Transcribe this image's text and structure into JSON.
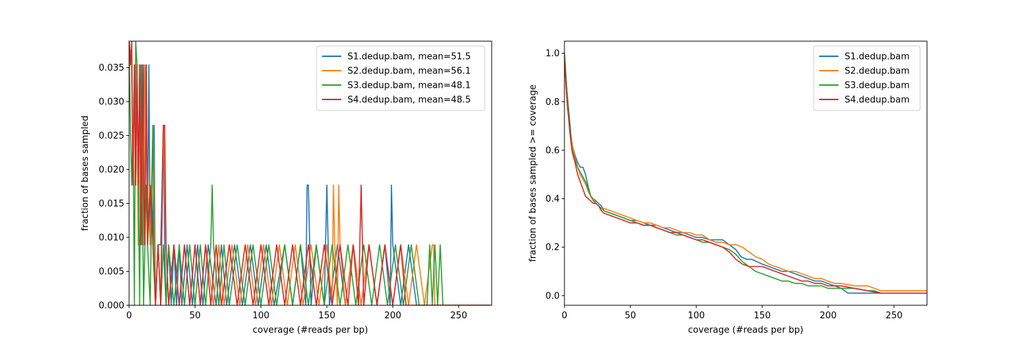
{
  "chart_data": [
    {
      "type": "line",
      "xlabel": "coverage (#reads per bp)",
      "ylabel": "fraction of bases sampled",
      "xlim": [
        0,
        275
      ],
      "ylim": [
        0,
        0.0389
      ],
      "x_ticks": [
        "0",
        "50",
        "100",
        "150",
        "200",
        "250"
      ],
      "y_ticks": [
        "0.000",
        "0.005",
        "0.010",
        "0.015",
        "0.020",
        "0.025",
        "0.030",
        "0.035"
      ],
      "grid": false,
      "legend_position": "top-right",
      "series": [
        {
          "name": "S1.dedup.bam, mean=51.5",
          "color": "#1f77b4",
          "x": [
            0,
            2,
            3,
            4,
            5,
            6,
            7,
            8,
            9,
            10,
            11,
            12,
            13,
            14,
            15,
            16,
            17,
            18,
            19,
            20,
            22,
            24,
            26,
            27,
            28,
            30,
            32,
            34,
            36,
            38,
            40,
            44,
            48,
            52,
            56,
            60,
            66,
            70,
            74,
            80,
            86,
            92,
            98,
            104,
            110,
            118,
            124,
            130,
            134,
            135,
            136,
            137,
            138,
            142,
            148,
            150,
            151,
            152,
            158,
            164,
            170,
            176,
            182,
            188,
            194,
            198,
            199,
            200,
            206,
            212,
            218,
            274
          ],
          "y": [
            0.0389,
            0.0354,
            0.0177,
            0.0354,
            0.0177,
            0.0354,
            0.0089,
            0.0354,
            0.0177,
            0.0089,
            0.0354,
            0.0089,
            0.0354,
            0.0089,
            0.0354,
            0.0089,
            0.0177,
            0.0089,
            0.0265,
            0,
            0.0089,
            0.0089,
            0.0265,
            0.0089,
            0,
            0.0089,
            0,
            0.0089,
            0,
            0.0089,
            0,
            0.0089,
            0,
            0.0089,
            0,
            0.0089,
            0,
            0.0089,
            0,
            0.0089,
            0,
            0.0089,
            0,
            0.0089,
            0,
            0.0089,
            0,
            0.0089,
            0,
            0.0177,
            0.0177,
            0.0089,
            0,
            0.0089,
            0,
            0.0177,
            0.0089,
            0,
            0.0089,
            0,
            0.0089,
            0,
            0.0089,
            0,
            0.0089,
            0,
            0.0177,
            0.0089,
            0,
            0.0089,
            0,
            0
          ]
        },
        {
          "name": "S2.dedup.bam, mean=56.1",
          "color": "#ff7f0e",
          "x": [
            0,
            2,
            3,
            4,
            5,
            6,
            7,
            8,
            9,
            10,
            11,
            12,
            14,
            16,
            18,
            19,
            20,
            22,
            24,
            26,
            28,
            30,
            34,
            38,
            42,
            46,
            50,
            54,
            58,
            64,
            68,
            72,
            78,
            84,
            90,
            96,
            102,
            108,
            114,
            120,
            126,
            132,
            138,
            144,
            150,
            154,
            155,
            156,
            158,
            159,
            160,
            164,
            170,
            176,
            182,
            188,
            194,
            200,
            206,
            212,
            218,
            224,
            230,
            231,
            232,
            274
          ],
          "y": [
            0.0389,
            0.0354,
            0.0177,
            0.0354,
            0.0177,
            0.0354,
            0.0089,
            0.0354,
            0.0177,
            0.0354,
            0.0089,
            0.0354,
            0.0177,
            0.0089,
            0.0265,
            0.0177,
            0,
            0.0089,
            0,
            0.0265,
            0.0089,
            0,
            0.0089,
            0,
            0.0089,
            0,
            0.0089,
            0,
            0.0089,
            0,
            0.0089,
            0,
            0.0089,
            0,
            0.0089,
            0,
            0.0089,
            0,
            0.0089,
            0,
            0.0089,
            0,
            0.0089,
            0,
            0.0089,
            0,
            0.0177,
            0.0089,
            0,
            0.0177,
            0.0089,
            0,
            0.0089,
            0,
            0.0089,
            0,
            0.0089,
            0,
            0.0089,
            0,
            0.0089,
            0,
            0.0089,
            0.0089,
            0,
            0
          ]
        },
        {
          "name": "S3.dedup.bam, mean=48.1",
          "color": "#2ca02c",
          "x": [
            0,
            1,
            2,
            3,
            4,
            5,
            6,
            7,
            8,
            9,
            10,
            11,
            12,
            13,
            14,
            16,
            18,
            19,
            20,
            22,
            24,
            26,
            28,
            30,
            34,
            38,
            42,
            46,
            50,
            54,
            58,
            62,
            63,
            64,
            68,
            72,
            76,
            82,
            88,
            94,
            100,
            106,
            112,
            118,
            124,
            130,
            136,
            142,
            148,
            154,
            160,
            166,
            172,
            178,
            184,
            190,
            196,
            202,
            208,
            214,
            220,
            226,
            228,
            230,
            232,
            234,
            236,
            238,
            274
          ],
          "y": [
            0.0389,
            0.0265,
            0.0177,
            0.0265,
            0,
            0.0389,
            0.0354,
            0.0177,
            0,
            0.0354,
            0.0177,
            0,
            0.0089,
            0.0177,
            0.0089,
            0,
            0.0265,
            0.0089,
            0,
            0.0089,
            0,
            0.0089,
            0,
            0.0089,
            0,
            0.0089,
            0,
            0.0089,
            0,
            0.0089,
            0,
            0.0089,
            0.0177,
            0.0089,
            0,
            0.0089,
            0,
            0.0089,
            0,
            0.0089,
            0,
            0.0089,
            0,
            0.0089,
            0,
            0.0089,
            0,
            0.0089,
            0,
            0.0089,
            0,
            0.0089,
            0,
            0.0089,
            0,
            0.0089,
            0,
            0.0089,
            0,
            0.0089,
            0,
            0,
            0.0089,
            0,
            0.0089,
            0,
            0.0089,
            0,
            0
          ]
        },
        {
          "name": "S4.dedup.bam, mean=48.5",
          "color": "#d62728",
          "x": [
            0,
            1,
            2,
            3,
            4,
            5,
            6,
            7,
            8,
            9,
            10,
            11,
            12,
            13,
            14,
            16,
            18,
            20,
            22,
            24,
            26,
            27,
            28,
            30,
            34,
            38,
            42,
            46,
            50,
            54,
            58,
            62,
            66,
            70,
            76,
            82,
            88,
            94,
            100,
            106,
            112,
            118,
            124,
            130,
            136,
            142,
            148,
            154,
            160,
            166,
            170,
            174,
            176,
            178,
            182,
            188,
            194,
            200,
            206,
            210,
            274
          ],
          "y": [
            0.0389,
            0.0354,
            0.0389,
            0.0177,
            0.0354,
            0.0177,
            0.0354,
            0.0177,
            0.0354,
            0.0089,
            0.0354,
            0.0177,
            0.0089,
            0.0354,
            0.0089,
            0.0177,
            0.0089,
            0,
            0.0089,
            0,
            0.0265,
            0.0265,
            0.0089,
            0,
            0.0089,
            0,
            0.0089,
            0,
            0.0089,
            0,
            0.0089,
            0,
            0.0089,
            0,
            0.0089,
            0,
            0.0089,
            0,
            0.0089,
            0,
            0.0089,
            0,
            0.0089,
            0,
            0.0089,
            0,
            0.0089,
            0,
            0.0089,
            0,
            0.0089,
            0,
            0.0177,
            0,
            0.0089,
            0,
            0.0089,
            0,
            0.0089,
            0,
            0
          ]
        }
      ]
    },
    {
      "type": "line",
      "xlabel": "coverage (#reads per bp)",
      "ylabel": "fraction of bases sampled >= coverage",
      "xlim": [
        0,
        275
      ],
      "ylim": [
        -0.04,
        1.05
      ],
      "x_ticks": [
        "0",
        "50",
        "100",
        "150",
        "200",
        "250"
      ],
      "y_ticks": [
        "0.0",
        "0.2",
        "0.4",
        "0.6",
        "0.8",
        "1.0"
      ],
      "grid": false,
      "legend_position": "top-right",
      "series": [
        {
          "name": "S1.dedup.bam",
          "color": "#1f77b4",
          "x": [
            0,
            1,
            2,
            3,
            4,
            5,
            6,
            8,
            10,
            12,
            14,
            16,
            18,
            20,
            22,
            24,
            26,
            28,
            30,
            35,
            40,
            45,
            50,
            55,
            60,
            65,
            70,
            75,
            80,
            85,
            90,
            95,
            100,
            105,
            110,
            115,
            120,
            125,
            130,
            134,
            138,
            142,
            146,
            150,
            155,
            160,
            165,
            170,
            175,
            180,
            185,
            190,
            195,
            200,
            205,
            210,
            215,
            220,
            230,
            240,
            275
          ],
          "y": [
            1.0,
            0.92,
            0.84,
            0.78,
            0.72,
            0.66,
            0.62,
            0.58,
            0.55,
            0.53,
            0.53,
            0.5,
            0.45,
            0.41,
            0.4,
            0.39,
            0.38,
            0.37,
            0.35,
            0.34,
            0.33,
            0.32,
            0.31,
            0.31,
            0.3,
            0.29,
            0.29,
            0.28,
            0.27,
            0.26,
            0.26,
            0.25,
            0.24,
            0.24,
            0.23,
            0.23,
            0.23,
            0.21,
            0.19,
            0.16,
            0.15,
            0.15,
            0.14,
            0.13,
            0.12,
            0.11,
            0.1,
            0.1,
            0.09,
            0.08,
            0.07,
            0.06,
            0.06,
            0.05,
            0.04,
            0.03,
            0.01,
            0.01,
            0.01,
            0.01,
            0.01
          ]
        },
        {
          "name": "S2.dedup.bam",
          "color": "#ff7f0e",
          "x": [
            0,
            1,
            2,
            3,
            4,
            5,
            6,
            8,
            10,
            12,
            14,
            16,
            18,
            20,
            22,
            24,
            26,
            28,
            30,
            35,
            40,
            45,
            50,
            55,
            60,
            65,
            70,
            75,
            80,
            85,
            90,
            95,
            100,
            105,
            110,
            115,
            120,
            125,
            130,
            135,
            140,
            145,
            150,
            155,
            160,
            165,
            170,
            175,
            180,
            185,
            190,
            195,
            200,
            205,
            210,
            220,
            230,
            235,
            240,
            250,
            275
          ],
          "y": [
            1.0,
            0.92,
            0.84,
            0.77,
            0.7,
            0.65,
            0.62,
            0.57,
            0.53,
            0.5,
            0.48,
            0.46,
            0.43,
            0.41,
            0.4,
            0.38,
            0.37,
            0.36,
            0.36,
            0.35,
            0.34,
            0.33,
            0.32,
            0.31,
            0.3,
            0.3,
            0.29,
            0.28,
            0.28,
            0.27,
            0.26,
            0.26,
            0.25,
            0.25,
            0.23,
            0.22,
            0.22,
            0.21,
            0.21,
            0.2,
            0.18,
            0.16,
            0.15,
            0.13,
            0.12,
            0.11,
            0.1,
            0.1,
            0.09,
            0.08,
            0.07,
            0.07,
            0.06,
            0.05,
            0.05,
            0.04,
            0.04,
            0.03,
            0.02,
            0.02,
            0.02
          ]
        },
        {
          "name": "S3.dedup.bam",
          "color": "#2ca02c",
          "x": [
            0,
            1,
            2,
            3,
            4,
            5,
            6,
            8,
            10,
            12,
            14,
            16,
            18,
            20,
            22,
            24,
            26,
            28,
            30,
            35,
            40,
            45,
            50,
            55,
            60,
            65,
            70,
            75,
            80,
            85,
            90,
            95,
            100,
            105,
            110,
            115,
            120,
            125,
            130,
            135,
            140,
            145,
            150,
            155,
            160,
            165,
            170,
            175,
            180,
            185,
            190,
            195,
            200,
            205,
            210,
            220,
            230,
            235,
            240,
            275
          ],
          "y": [
            1.0,
            0.91,
            0.83,
            0.76,
            0.7,
            0.64,
            0.6,
            0.56,
            0.53,
            0.51,
            0.49,
            0.47,
            0.44,
            0.41,
            0.39,
            0.38,
            0.37,
            0.36,
            0.35,
            0.34,
            0.33,
            0.32,
            0.31,
            0.3,
            0.29,
            0.29,
            0.28,
            0.27,
            0.26,
            0.25,
            0.25,
            0.24,
            0.23,
            0.22,
            0.22,
            0.21,
            0.2,
            0.19,
            0.17,
            0.14,
            0.12,
            0.1,
            0.09,
            0.08,
            0.07,
            0.06,
            0.06,
            0.05,
            0.05,
            0.04,
            0.04,
            0.04,
            0.03,
            0.03,
            0.03,
            0.03,
            0.02,
            0.02,
            0.01,
            0.01
          ]
        },
        {
          "name": "S4.dedup.bam",
          "color": "#d62728",
          "x": [
            0,
            1,
            2,
            3,
            4,
            5,
            6,
            8,
            10,
            12,
            14,
            16,
            18,
            20,
            22,
            24,
            26,
            28,
            30,
            35,
            40,
            45,
            50,
            55,
            60,
            65,
            70,
            75,
            80,
            85,
            90,
            95,
            100,
            105,
            110,
            115,
            120,
            125,
            130,
            135,
            140,
            145,
            150,
            155,
            160,
            165,
            170,
            175,
            180,
            185,
            190,
            195,
            200,
            210,
            220,
            230,
            240,
            275
          ],
          "y": [
            0.98,
            0.88,
            0.8,
            0.74,
            0.68,
            0.63,
            0.59,
            0.55,
            0.5,
            0.47,
            0.44,
            0.41,
            0.4,
            0.39,
            0.38,
            0.38,
            0.37,
            0.35,
            0.34,
            0.33,
            0.32,
            0.31,
            0.3,
            0.3,
            0.29,
            0.29,
            0.28,
            0.27,
            0.26,
            0.26,
            0.25,
            0.24,
            0.23,
            0.23,
            0.22,
            0.21,
            0.2,
            0.18,
            0.15,
            0.13,
            0.12,
            0.12,
            0.12,
            0.11,
            0.1,
            0.09,
            0.08,
            0.07,
            0.06,
            0.06,
            0.05,
            0.05,
            0.04,
            0.04,
            0.03,
            0.02,
            0.01,
            0.01
          ]
        }
      ]
    }
  ]
}
